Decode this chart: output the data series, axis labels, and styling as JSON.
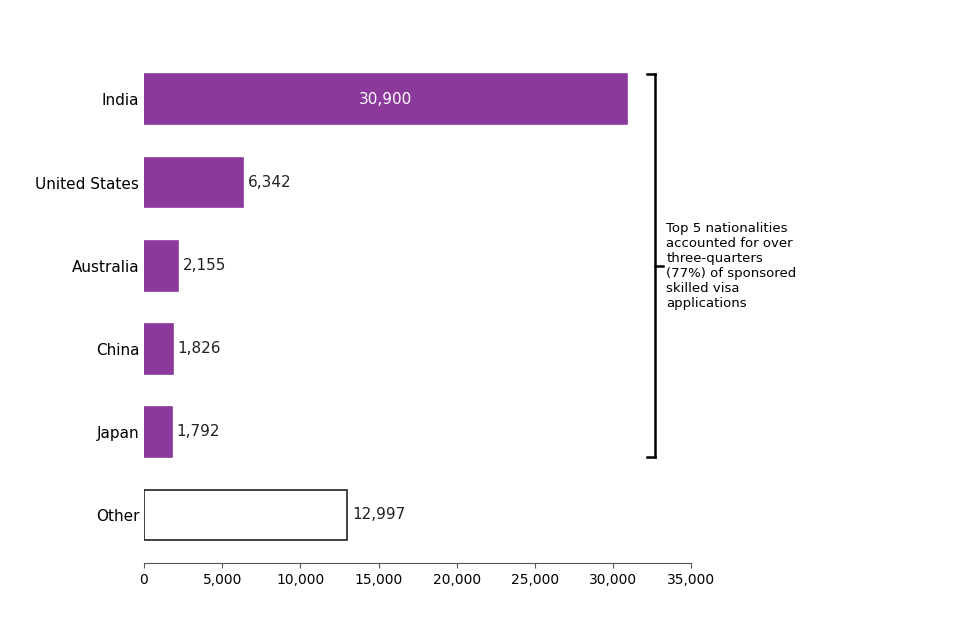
{
  "categories": [
    "Other",
    "Japan",
    "China",
    "Australia",
    "United States",
    "India"
  ],
  "values": [
    12997,
    1792,
    1826,
    2155,
    6342,
    30900
  ],
  "labels": [
    "12,997",
    "1,792",
    "1,826",
    "2,155",
    "6,342",
    "30,900"
  ],
  "bar_colors": [
    "#ffffff",
    "#8b3a9c",
    "#8b3a9c",
    "#8b3a9c",
    "#8b3a9c",
    "#8b3a9c"
  ],
  "bar_edgecolors": [
    "#222222",
    "#8b3a9c",
    "#8b3a9c",
    "#8b3a9c",
    "#8b3a9c",
    "#8b3a9c"
  ],
  "label_colors": [
    "#222222",
    "#222222",
    "#222222",
    "#222222",
    "#222222",
    "#ffffff"
  ],
  "xlim": [
    0,
    35000
  ],
  "xticks": [
    0,
    5000,
    10000,
    15000,
    20000,
    25000,
    30000,
    35000
  ],
  "xticklabels": [
    "0",
    "5,000",
    "10,000",
    "15,000",
    "20,000",
    "25,000",
    "30,000",
    "35,000"
  ],
  "annotation_text": "Top 5 nationalities\naccounted for over\nthree-quarters\n(77%) of sponsored\nskilled visa\napplications",
  "background_color": "#ffffff",
  "bar_height": 0.6,
  "label_fontsize": 11,
  "tick_fontsize": 10,
  "ytick_fontsize": 11
}
